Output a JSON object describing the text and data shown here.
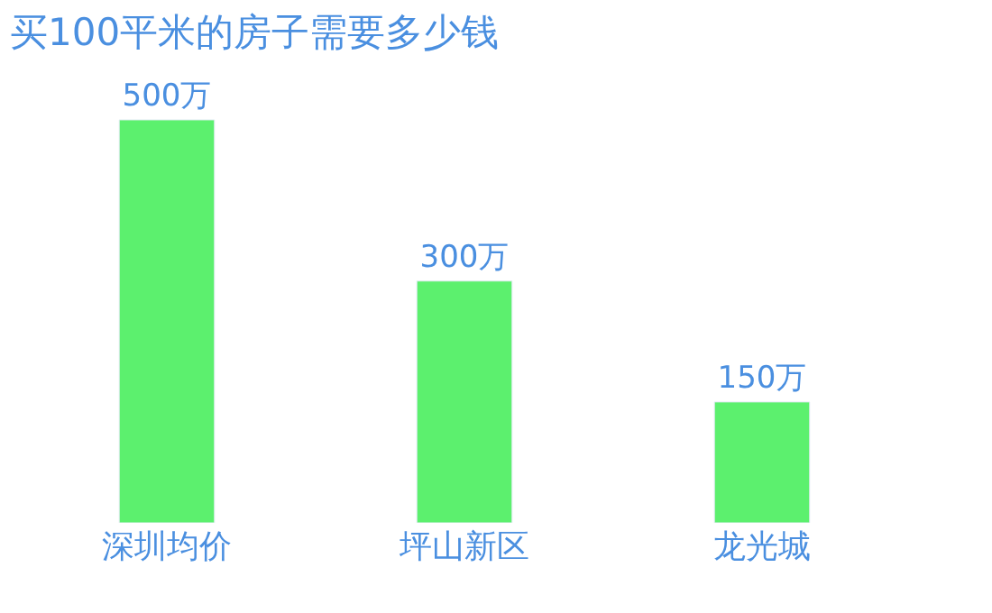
{
  "chart_data": {
    "type": "bar",
    "title": "买100平米的房子需要多少钱",
    "categories": [
      "深圳均价",
      "坪山新区",
      "龙光城"
    ],
    "values": [
      500,
      300,
      150
    ],
    "value_labels": [
      "500万",
      "300万",
      "150万"
    ],
    "color": "#5cf06e"
  }
}
